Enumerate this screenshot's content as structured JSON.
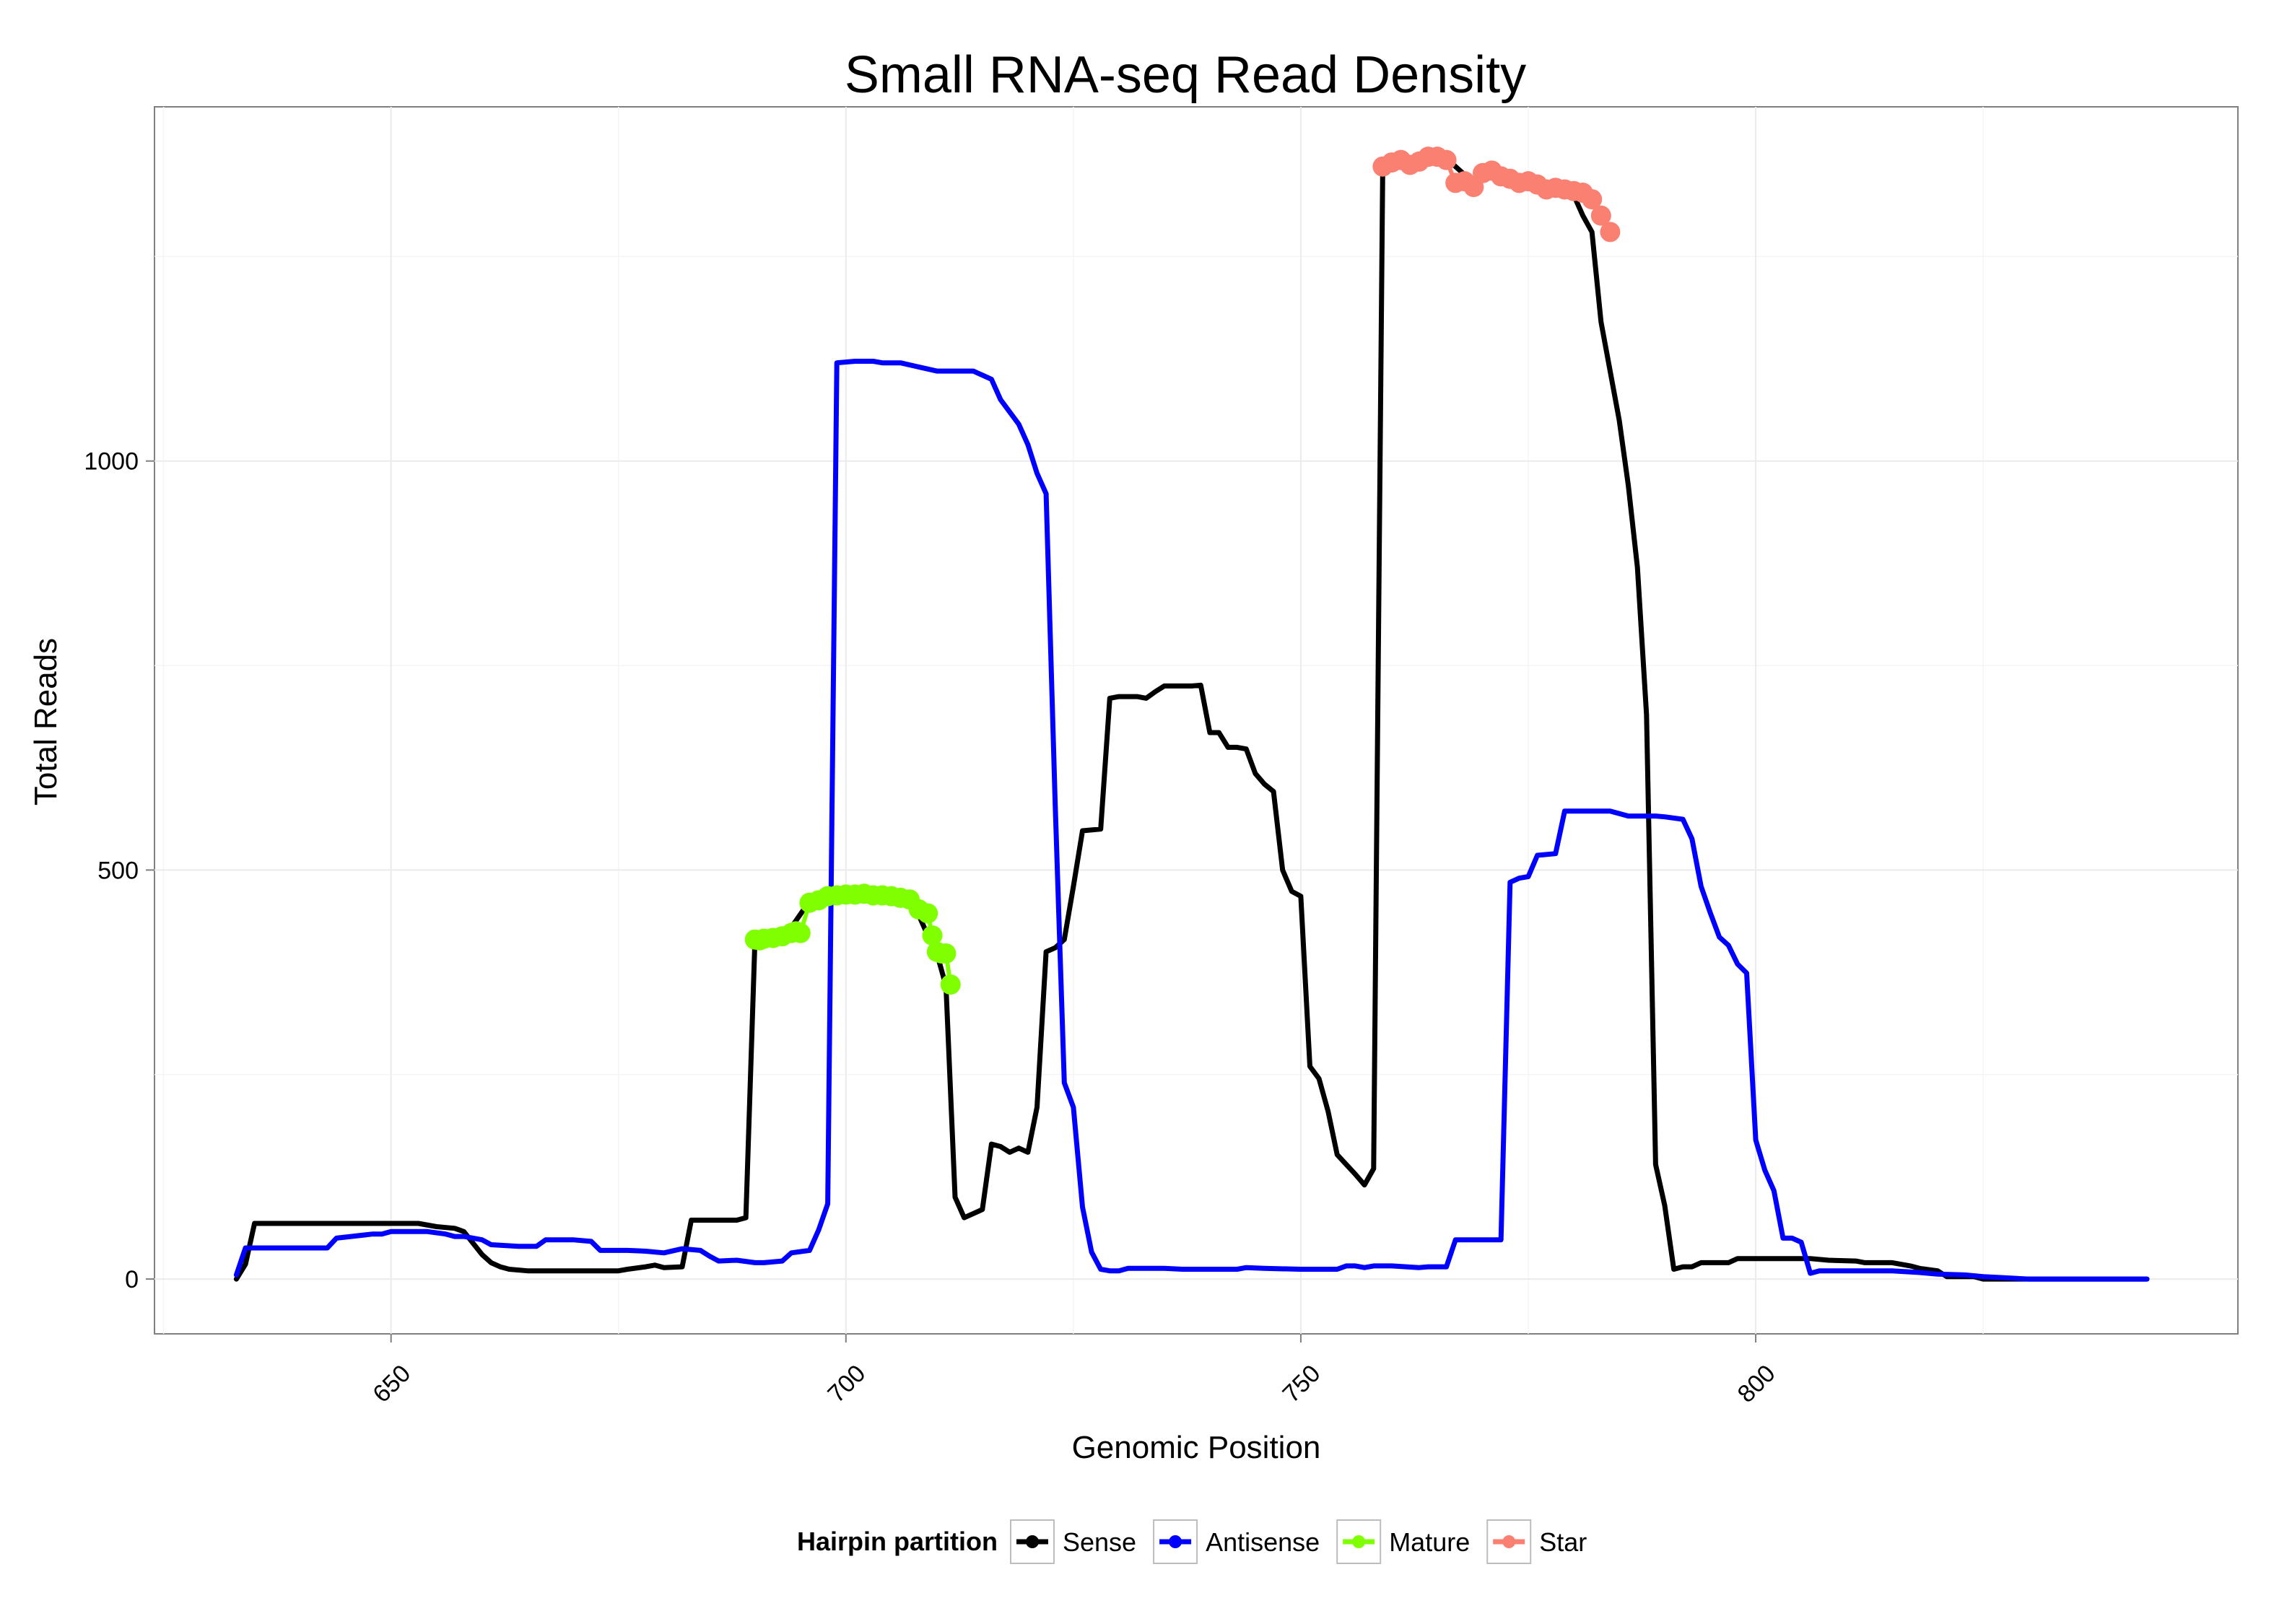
{
  "chart_data": {
    "type": "line",
    "title": "Small RNA-seq Read Density",
    "xlabel": "Genomic Position",
    "ylabel": "Total Reads",
    "xlim": [
      624,
      853
    ],
    "ylim": [
      -67,
      1433
    ],
    "x_ticks": [
      650,
      700,
      750,
      800
    ],
    "y_ticks": [
      0,
      500,
      1000
    ],
    "grid": true,
    "legend": {
      "title": "Hairpin partition",
      "position": "bottom",
      "entries": [
        {
          "name": "Sense",
          "color": "#000000"
        },
        {
          "name": "Antisense",
          "color": "#0000ff"
        },
        {
          "name": "Mature",
          "color": "#7fff00"
        },
        {
          "name": "Star",
          "color": "#fa8072"
        }
      ]
    },
    "series": [
      {
        "name": "Sense",
        "color": "#000000",
        "points": [
          [
            633,
            0
          ],
          [
            634,
            18
          ],
          [
            635,
            68
          ],
          [
            640,
            68
          ],
          [
            645,
            68
          ],
          [
            650,
            68
          ],
          [
            653,
            68
          ],
          [
            655,
            64
          ],
          [
            657,
            62
          ],
          [
            658,
            58
          ],
          [
            660,
            30
          ],
          [
            661,
            20
          ],
          [
            662,
            15
          ],
          [
            663,
            12
          ],
          [
            665,
            10
          ],
          [
            670,
            10
          ],
          [
            675,
            10
          ],
          [
            676,
            12
          ],
          [
            678,
            15
          ],
          [
            679,
            17
          ],
          [
            680,
            14
          ],
          [
            682,
            15
          ],
          [
            683,
            72
          ],
          [
            686,
            72
          ],
          [
            688,
            72
          ],
          [
            689,
            75
          ],
          [
            690,
            415
          ],
          [
            692,
            418
          ],
          [
            694,
            430
          ],
          [
            696,
            462
          ],
          [
            700,
            470
          ],
          [
            706,
            465
          ],
          [
            707,
            455
          ],
          [
            708,
            445
          ],
          [
            709,
            420
          ],
          [
            710,
            398
          ],
          [
            711,
            358
          ],
          [
            712,
            100
          ],
          [
            713,
            75
          ],
          [
            714,
            80
          ],
          [
            715,
            85
          ],
          [
            716,
            165
          ],
          [
            717,
            162
          ],
          [
            718,
            155
          ],
          [
            719,
            160
          ],
          [
            720,
            155
          ],
          [
            721,
            210
          ],
          [
            722,
            400
          ],
          [
            723,
            405
          ],
          [
            724,
            415
          ],
          [
            725,
            480
          ],
          [
            726,
            548
          ],
          [
            728,
            550
          ],
          [
            729,
            710
          ],
          [
            730,
            712
          ],
          [
            732,
            712
          ],
          [
            733,
            710
          ],
          [
            734,
            718
          ],
          [
            735,
            725
          ],
          [
            736,
            725
          ],
          [
            738,
            725
          ],
          [
            739,
            726
          ],
          [
            740,
            668
          ],
          [
            741,
            668
          ],
          [
            742,
            650
          ],
          [
            743,
            650
          ],
          [
            744,
            648
          ],
          [
            745,
            618
          ],
          [
            746,
            605
          ],
          [
            747,
            596
          ],
          [
            748,
            500
          ],
          [
            749,
            474
          ],
          [
            750,
            468
          ],
          [
            751,
            260
          ],
          [
            752,
            245
          ],
          [
            753,
            205
          ],
          [
            754,
            152
          ],
          [
            755,
            140
          ],
          [
            756,
            128
          ],
          [
            757,
            115
          ],
          [
            758,
            135
          ],
          [
            759,
            1360
          ],
          [
            762,
            1370
          ],
          [
            766,
            1370
          ],
          [
            768,
            1350
          ],
          [
            769,
            1340
          ],
          [
            770,
            1355
          ],
          [
            772,
            1345
          ],
          [
            774,
            1340
          ],
          [
            776,
            1340
          ],
          [
            778,
            1335
          ],
          [
            780,
            1325
          ],
          [
            781,
            1300
          ],
          [
            782,
            1280
          ],
          [
            783,
            1170
          ],
          [
            784,
            1110
          ],
          [
            785,
            1050
          ],
          [
            786,
            970
          ],
          [
            787,
            870
          ],
          [
            788,
            690
          ],
          [
            789,
            140
          ],
          [
            790,
            90
          ],
          [
            791,
            12
          ],
          [
            792,
            15
          ],
          [
            793,
            15
          ],
          [
            794,
            20
          ],
          [
            797,
            20
          ],
          [
            798,
            25
          ],
          [
            800,
            25
          ],
          [
            802,
            25
          ],
          [
            804,
            25
          ],
          [
            806,
            25
          ],
          [
            808,
            23
          ],
          [
            811,
            22
          ],
          [
            812,
            20
          ],
          [
            815,
            20
          ],
          [
            817,
            16
          ],
          [
            818,
            13
          ],
          [
            820,
            10
          ],
          [
            821,
            3
          ],
          [
            824,
            3
          ],
          [
            825,
            0
          ],
          [
            830,
            0
          ],
          [
            835,
            0
          ],
          [
            840,
            0
          ],
          [
            843,
            0
          ]
        ]
      },
      {
        "name": "Antisense",
        "color": "#0000ff",
        "points": [
          [
            633,
            5
          ],
          [
            634,
            38
          ],
          [
            640,
            38
          ],
          [
            643,
            38
          ],
          [
            644,
            50
          ],
          [
            648,
            55
          ],
          [
            649,
            55
          ],
          [
            650,
            58
          ],
          [
            654,
            58
          ],
          [
            656,
            55
          ],
          [
            657,
            52
          ],
          [
            658,
            52
          ],
          [
            660,
            48
          ],
          [
            661,
            42
          ],
          [
            664,
            40
          ],
          [
            666,
            40
          ],
          [
            667,
            48
          ],
          [
            670,
            48
          ],
          [
            672,
            46
          ],
          [
            673,
            35
          ],
          [
            676,
            35
          ],
          [
            678,
            34
          ],
          [
            680,
            32
          ],
          [
            682,
            37
          ],
          [
            684,
            35
          ],
          [
            685,
            28
          ],
          [
            686,
            22
          ],
          [
            688,
            23
          ],
          [
            690,
            20
          ],
          [
            691,
            20
          ],
          [
            693,
            22
          ],
          [
            694,
            32
          ],
          [
            696,
            35
          ],
          [
            697,
            60
          ],
          [
            698,
            92
          ],
          [
            699,
            1120
          ],
          [
            701,
            1122
          ],
          [
            703,
            1122
          ],
          [
            704,
            1120
          ],
          [
            706,
            1120
          ],
          [
            708,
            1115
          ],
          [
            710,
            1110
          ],
          [
            712,
            1110
          ],
          [
            714,
            1110
          ],
          [
            716,
            1100
          ],
          [
            717,
            1075
          ],
          [
            718,
            1060
          ],
          [
            719,
            1045
          ],
          [
            720,
            1020
          ],
          [
            721,
            985
          ],
          [
            722,
            960
          ],
          [
            723,
            580
          ],
          [
            724,
            240
          ],
          [
            725,
            210
          ],
          [
            726,
            88
          ],
          [
            727,
            33
          ],
          [
            728,
            12
          ],
          [
            729,
            10
          ],
          [
            730,
            10
          ],
          [
            731,
            13
          ],
          [
            735,
            13
          ],
          [
            737,
            12
          ],
          [
            743,
            12
          ],
          [
            744,
            14
          ],
          [
            746,
            13
          ],
          [
            750,
            12
          ],
          [
            752,
            12
          ],
          [
            754,
            12
          ],
          [
            755,
            16
          ],
          [
            756,
            16
          ],
          [
            757,
            14
          ],
          [
            758,
            16
          ],
          [
            760,
            16
          ],
          [
            763,
            14
          ],
          [
            764,
            15
          ],
          [
            765,
            15
          ],
          [
            766,
            15
          ],
          [
            767,
            48
          ],
          [
            771,
            48
          ],
          [
            772,
            48
          ],
          [
            773,
            485
          ],
          [
            774,
            490
          ],
          [
            775,
            492
          ],
          [
            776,
            518
          ],
          [
            778,
            520
          ],
          [
            779,
            572
          ],
          [
            782,
            572
          ],
          [
            784,
            572
          ],
          [
            786,
            566
          ],
          [
            789,
            566
          ],
          [
            790,
            565
          ],
          [
            792,
            562
          ],
          [
            793,
            538
          ],
          [
            794,
            480
          ],
          [
            795,
            448
          ],
          [
            796,
            418
          ],
          [
            797,
            408
          ],
          [
            798,
            385
          ],
          [
            799,
            374
          ],
          [
            800,
            170
          ],
          [
            801,
            133
          ],
          [
            802,
            108
          ],
          [
            803,
            50
          ],
          [
            804,
            50
          ],
          [
            805,
            45
          ],
          [
            806,
            7
          ],
          [
            807,
            10
          ],
          [
            812,
            10
          ],
          [
            815,
            10
          ],
          [
            818,
            8
          ],
          [
            820,
            6
          ],
          [
            823,
            5
          ],
          [
            825,
            3
          ],
          [
            830,
            0
          ],
          [
            843,
            0
          ]
        ]
      },
      {
        "name": "Mature",
        "color": "#7fff00",
        "points": [
          [
            690,
            415
          ],
          [
            690.5,
            414
          ],
          [
            691,
            416
          ],
          [
            692,
            417
          ],
          [
            693,
            419
          ],
          [
            694,
            423
          ],
          [
            694.5,
            425
          ],
          [
            695,
            423
          ],
          [
            696,
            460
          ],
          [
            697,
            463
          ],
          [
            698,
            468
          ],
          [
            699,
            469
          ],
          [
            700,
            470
          ],
          [
            701,
            470
          ],
          [
            702,
            471
          ],
          [
            703,
            469
          ],
          [
            704,
            469
          ],
          [
            705,
            468
          ],
          [
            706,
            466
          ],
          [
            707,
            464
          ],
          [
            708,
            452
          ],
          [
            709,
            447
          ],
          [
            709.5,
            420
          ],
          [
            710,
            400
          ],
          [
            710.5,
            398
          ],
          [
            711,
            398
          ],
          [
            711.5,
            360
          ]
        ]
      },
      {
        "name": "Star",
        "color": "#fa8072",
        "points": [
          [
            759,
            1360
          ],
          [
            760,
            1365
          ],
          [
            761,
            1368
          ],
          [
            762,
            1362
          ],
          [
            763,
            1366
          ],
          [
            764,
            1372
          ],
          [
            765,
            1372
          ],
          [
            766,
            1368
          ],
          [
            767,
            1340
          ],
          [
            768,
            1342
          ],
          [
            769,
            1335
          ],
          [
            770,
            1352
          ],
          [
            771,
            1355
          ],
          [
            772,
            1348
          ],
          [
            773,
            1345
          ],
          [
            774,
            1340
          ],
          [
            775,
            1342
          ],
          [
            776,
            1338
          ],
          [
            777,
            1332
          ],
          [
            778,
            1334
          ],
          [
            779,
            1332
          ],
          [
            780,
            1330
          ],
          [
            781,
            1328
          ],
          [
            782,
            1320
          ],
          [
            783,
            1300
          ],
          [
            784,
            1280
          ]
        ]
      }
    ]
  }
}
